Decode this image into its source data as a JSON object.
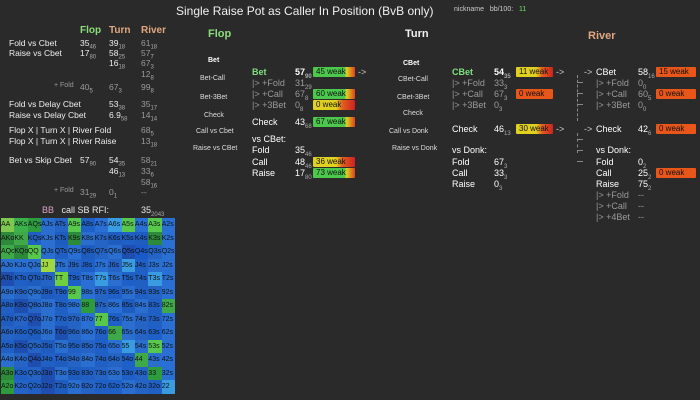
{
  "title": "Single Raise Pot as Caller In Position (BvB only)",
  "nickname": {
    "label": "nickname",
    "bb_label": "bb/100:",
    "bb_value": "11"
  },
  "headers": {
    "flop": "Flop",
    "turn": "Turn",
    "river": "River"
  },
  "left_stats": [
    {
      "label": "Fold vs Cbet",
      "flop": "35",
      "flop_sub": "46",
      "turn": "39",
      "turn_sub": "18",
      "river": "61",
      "river_sub": "18"
    },
    {
      "label": "Raise vs Cbet",
      "flop": "17",
      "flop_sub": "80",
      "turn": "58",
      "turn_sub": "25",
      "river": "57",
      "river_sub": "7"
    },
    {
      "label": "",
      "flop": "",
      "turn": "16",
      "turn_sub": "18",
      "river": "67",
      "river_sub": "3"
    },
    {
      "label": "",
      "flop": "",
      "turn": "",
      "river": "12",
      "river_sub": "8"
    },
    {
      "label": "+ Fold",
      "flop": "40",
      "flop_sub": "5",
      "turn": "67",
      "turn_sub": "3",
      "river": "99",
      "river_sub": "8"
    },
    {
      "label": "Fold vs Delay Cbet",
      "flop": "",
      "turn": "53",
      "turn_sub": "38",
      "river": "35",
      "river_sub": "17"
    },
    {
      "label": "Raise vs Delay Cbet",
      "flop": "",
      "turn": "6.9",
      "turn_sub": "58",
      "river": "14",
      "river_sub": "14"
    },
    {
      "label": "Flop X | Turn X | River Fold",
      "flop": "",
      "turn": "",
      "river": "68",
      "river_sub": "5"
    },
    {
      "label": "Flop X | Turn X | River Raise",
      "flop": "",
      "turn": "",
      "river": "13",
      "river_sub": "18"
    },
    {
      "label": "Bet vs Skip Cbet",
      "flop": "57",
      "flop_sub": "90",
      "turn": "54",
      "turn_sub": "35",
      "river": "58",
      "river_sub": "21"
    },
    {
      "label": "",
      "flop": "",
      "turn": "46",
      "turn_sub": "13",
      "river": "33",
      "river_sub": "6"
    },
    {
      "label": "",
      "flop": "",
      "turn": "",
      "river": "58",
      "river_sub": "16"
    },
    {
      "label": "+ Fold",
      "flop": "31",
      "flop_sub": "29",
      "turn": "0",
      "turn_sub": "1",
      "river": "--"
    }
  ],
  "rfi": {
    "bb": "BB",
    "label": "call SB RFI:",
    "value": "35",
    "value_sub": "2043"
  },
  "flop_nav": [
    "Bet",
    "Bet-Call",
    "Bet-3Bet",
    "Check",
    "Call vs Cbet",
    "Raise vs CBet"
  ],
  "turn_nav": [
    "CBet",
    "CBet-Call",
    "CBet-3Bet",
    "Check",
    "Call vs Donk",
    "Raise vs Donk"
  ],
  "flop_section": {
    "bet": {
      "label": "Bet",
      "value": "57",
      "sub": "90",
      "bar": "45 weak"
    },
    "fold": {
      "label": "|> +Fold",
      "value": "31",
      "sub": "29"
    },
    "call": {
      "label": "|> +Call",
      "value": "67",
      "sub": "8",
      "bar": "60 weak"
    },
    "threebet": {
      "label": "|> +3Bet",
      "value": "0",
      "sub": "8",
      "bar": "0 weak"
    },
    "check": {
      "label": "Check",
      "value": "43",
      "sub": "68",
      "bar": "67 weak"
    },
    "vs_cbet": "vs CBet:",
    "fold2": {
      "label": "Fold",
      "value": "35",
      "sub": "46"
    },
    "call2": {
      "label": "Call",
      "value": "48",
      "sub": "46",
      "bar": "36 weak"
    },
    "raise2": {
      "label": "Raise",
      "value": "17",
      "sub": "80",
      "bar": "73 weak"
    }
  },
  "turn_section": {
    "cbet": {
      "label": "CBet",
      "value": "54",
      "sub": "35",
      "bar": "11 weak"
    },
    "fold": {
      "label": "|> +Fold",
      "value": "33",
      "sub": "3"
    },
    "call": {
      "label": "|> +Call",
      "value": "67",
      "sub": "3",
      "bar": "0 weak"
    },
    "threebet": {
      "label": "|> +3Bet",
      "value": "0",
      "sub": "3"
    },
    "check": {
      "label": "Check",
      "value": "46",
      "sub": "13",
      "bar": "30 weak"
    },
    "vs_donk": "vs Donk:",
    "fold2": {
      "label": "Fold",
      "value": "67",
      "sub": "3"
    },
    "call2": {
      "label": "Call",
      "value": "33",
      "sub": "3"
    },
    "raise2": {
      "label": "Raise",
      "value": "0",
      "sub": "3"
    }
  },
  "river_section": {
    "cbet": {
      "label": "CBet",
      "value": "58",
      "sub": "16",
      "bar": "15 weak"
    },
    "fold": {
      "label": "|> +Fold",
      "value": "0",
      "sub": "0"
    },
    "call": {
      "label": "|> +Call",
      "value": "60",
      "sub": "5",
      "bar": "0 weak"
    },
    "threebet": {
      "label": "|> +3Bet",
      "value": "0",
      "sub": "0"
    },
    "check": {
      "label": "Check",
      "value": "42",
      "sub": "6",
      "bar": "0 weak"
    },
    "vs_donk": "vs Donk:",
    "fold2": {
      "label": "Fold",
      "value": "0",
      "sub": "2"
    },
    "call2": {
      "label": "Call",
      "value": "25",
      "sub": "2",
      "bar": "0 weak"
    },
    "raise2": {
      "label": "Raise",
      "value": "75",
      "sub": "2"
    },
    "fold3": {
      "label": "|> +Fold",
      "value": "--"
    },
    "call3": {
      "label": "|> +Call",
      "value": "--"
    },
    "fourbet": {
      "label": "|> +4Bet",
      "value": "--"
    }
  },
  "range_grid": {
    "rows": [
      [
        "AA",
        "AKs",
        "AQs",
        "AJs",
        "ATs",
        "A9s",
        "A8s",
        "A7s",
        "A6s",
        "A5s",
        "A4s",
        "A3s",
        "A2s"
      ],
      [
        "AKo",
        "KK",
        "KQs",
        "KJs",
        "KTs",
        "K9s",
        "K8s",
        "K7s",
        "K6s",
        "K5s",
        "K4s",
        "K3s",
        "K2s"
      ],
      [
        "AQo",
        "KQo",
        "QQ",
        "QJs",
        "QTs",
        "Q9s",
        "Q8s",
        "Q7s",
        "Q6s",
        "Q5s",
        "Q4s",
        "Q3s",
        "Q2s"
      ],
      [
        "AJo",
        "KJo",
        "QJo",
        "JJ",
        "JTs",
        "J9s",
        "J8s",
        "J7s",
        "J6s",
        "J5s",
        "J4s",
        "J3s",
        "J2s"
      ],
      [
        "ATo",
        "KTo",
        "QTo",
        "JTo",
        "TT",
        "T9s",
        "T8s",
        "T7s",
        "T6s",
        "T5s",
        "T4s",
        "T3s",
        "T2s"
      ],
      [
        "A9o",
        "K9o",
        "Q9o",
        "J9o",
        "T9o",
        "99",
        "98s",
        "97s",
        "96s",
        "95s",
        "94s",
        "93s",
        "92s"
      ],
      [
        "A8o",
        "K8o",
        "Q8o",
        "J8o",
        "T8o",
        "98o",
        "88",
        "87s",
        "86s",
        "85s",
        "84s",
        "83s",
        "82s"
      ],
      [
        "A7o",
        "K7o",
        "Q7o",
        "J7o",
        "T7o",
        "97o",
        "87o",
        "77",
        "76s",
        "75s",
        "74s",
        "73s",
        "72s"
      ],
      [
        "A6o",
        "K6o",
        "Q6o",
        "J6o",
        "T6o",
        "96o",
        "86o",
        "76o",
        "66",
        "65s",
        "64s",
        "63s",
        "62s"
      ],
      [
        "A5o",
        "K5o",
        "Q5o",
        "J5o",
        "T5o",
        "95o",
        "85o",
        "75o",
        "65o",
        "55",
        "54s",
        "53s",
        "52s"
      ],
      [
        "A4o",
        "K4o",
        "Q4o",
        "J4o",
        "T4o",
        "94o",
        "84o",
        "74o",
        "64o",
        "54o",
        "44",
        "43s",
        "42s"
      ],
      [
        "A3o",
        "K3o",
        "Q3o",
        "J3o",
        "T3o",
        "93o",
        "83o",
        "73o",
        "63o",
        "53o",
        "43o",
        "33",
        "32s"
      ],
      [
        "A2o",
        "K2o",
        "Q2o",
        "J2o",
        "T2o",
        "92o",
        "82o",
        "72o",
        "62o",
        "52o",
        "42o",
        "32o",
        "22"
      ]
    ],
    "colors": [
      [
        "#7ec850",
        "#3cb04a",
        "#2e9c3e",
        "#2a6fd0",
        "#2563c4",
        "#58c84c",
        "#1e60c8",
        "#2a70d4",
        "#3a9ce0",
        "#58c84c",
        "#2a70d4",
        "#58c84c",
        "#2a70d4"
      ],
      [
        "#2d8a3a",
        "#3fa848",
        "#2060c4",
        "#2a6fd0",
        "#1f5cc0",
        "#2d8a3a",
        "#2a6fd0",
        "#2563c4",
        "#1f5cc0",
        "#2060c4",
        "#1f5cc0",
        "#2d8a3a",
        "#2a70d4"
      ],
      [
        "#3fa848",
        "#2d8a3a",
        "#58c84c",
        "#2a6fd0",
        "#2060c4",
        "#2a70d4",
        "#1f5cc0",
        "#2563c4",
        "#2a6fd0",
        "#1e4fb0",
        "#1a5ac8",
        "#2563c4",
        "#2a70d4"
      ],
      [
        "#2a6fd0",
        "#2a70d4",
        "#2a6fd0",
        "#a0d840",
        "#2a6fd0",
        "#2563c4",
        "#1e60c8",
        "#2a70d4",
        "#2563c4",
        "#3a9ce0",
        "#2060c4",
        "#2a6fd0",
        "#2a70d4"
      ],
      [
        "#1e4fb0",
        "#2060c4",
        "#1f5cc0",
        "#2563c4",
        "#6ed040",
        "#1e60c8",
        "#2a70d4",
        "#3a9ce0",
        "#2a6fd0",
        "#1e60c8",
        "#2060c4",
        "#3a9ce0",
        "#2a70d4"
      ],
      [
        "#2a6fd0",
        "#2563c4",
        "#2a6fd0",
        "#1f5cc0",
        "#2060c4",
        "#58c84c",
        "#2a70d4",
        "#2563c4",
        "#1e60c8",
        "#2a6fd0",
        "#2060c4",
        "#2563c4",
        "#2a70d4"
      ],
      [
        "#2060c4",
        "#1e4fb0",
        "#2563c4",
        "#2a6fd0",
        "#2060c4",
        "#2a70d4",
        "#2e9c3e",
        "#2563c4",
        "#2a70d4",
        "#1f5cc0",
        "#2a6fd0",
        "#2060c4",
        "#3fa848"
      ],
      [
        "#1f5cc0",
        "#2563c4",
        "#1e4fb0",
        "#2a6fd0",
        "#2060c4",
        "#2563c4",
        "#2a70d4",
        "#58c84c",
        "#1e60c8",
        "#2a6fd0",
        "#2563c4",
        "#2060c4",
        "#2a70d4"
      ],
      [
        "#2563c4",
        "#2060c4",
        "#1f5cc0",
        "#2a6fd0",
        "#1e4fb0",
        "#2563c4",
        "#2a70d4",
        "#2060c4",
        "#3fa848",
        "#2a6fd0",
        "#2563c4",
        "#1e60c8",
        "#2a70d4"
      ],
      [
        "#2060c4",
        "#1e4fb0",
        "#2563c4",
        "#1f5cc0",
        "#2a6fd0",
        "#2060c4",
        "#2563c4",
        "#1e60c8",
        "#2a70d4",
        "#3a9ce0",
        "#2a6fd0",
        "#58c84c",
        "#2a70d4"
      ],
      [
        "#2a6fd0",
        "#2563c4",
        "#1e4fb0",
        "#2060c4",
        "#1f5cc0",
        "#2563c4",
        "#2a6fd0",
        "#2060c4",
        "#2563c4",
        "#1e60c8",
        "#3fa848",
        "#2a6fd0",
        "#2a70d4"
      ],
      [
        "#2d8a3a",
        "#2060c4",
        "#2563c4",
        "#1e4fb0",
        "#2a6fd0",
        "#1f5cc0",
        "#2060c4",
        "#2563c4",
        "#2a6fd0",
        "#1e60c8",
        "#2563c4",
        "#2e9c3e",
        "#2a70d4"
      ],
      [
        "#2e9c3e",
        "#2563c4",
        "#2060c4",
        "#1e4fb0",
        "#1f5cc0",
        "#2a6fd0",
        "#2563c4",
        "#2060c4",
        "#1e60c8",
        "#2a6fd0",
        "#2563c4",
        "#2060c4",
        "#3a9ce0"
      ]
    ]
  }
}
